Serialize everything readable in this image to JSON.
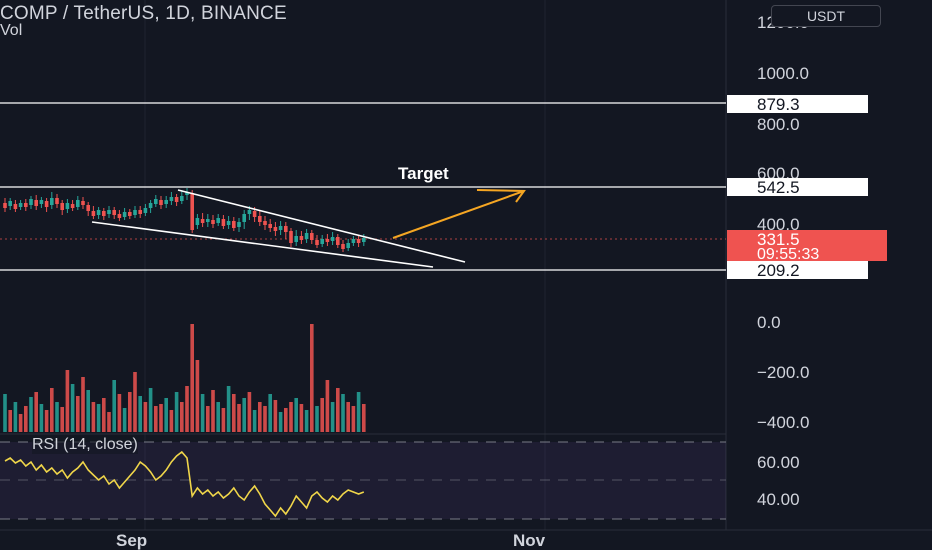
{
  "header": {
    "symbol_title": "COMP / TetherUS, 1D, BINANCE",
    "volume_label": "Vol"
  },
  "currency_button": {
    "label": "USDT"
  },
  "price_axis": {
    "ticks": [
      {
        "label": "1200.0",
        "value": 1200
      },
      {
        "label": "1000.0",
        "value": 1000
      },
      {
        "label": "800.0",
        "value": 800
      },
      {
        "label": "600.0",
        "value": 600
      },
      {
        "label": "400.0",
        "value": 400
      }
    ]
  },
  "volume_axis": {
    "ticks": [
      {
        "label": "0.0",
        "value": 0
      },
      {
        "label": "−200.0",
        "value": -200
      },
      {
        "label": "−400.0",
        "value": -400
      }
    ]
  },
  "rsi_axis": {
    "ticks": [
      {
        "label": "60.00",
        "value": 60
      },
      {
        "label": "40.00",
        "value": 40
      }
    ]
  },
  "levels": [
    {
      "label": "879.3",
      "value": 879.3
    },
    {
      "label": "542.5",
      "value": 542.5
    },
    {
      "label": "209.2",
      "value": 209.2
    }
  ],
  "current_price": {
    "price": "331.5",
    "countdown": "09:55:33",
    "value": 331.5
  },
  "annotation": {
    "target_label": "Target"
  },
  "rsi_indicator": {
    "label": "RSI (14, close)"
  },
  "time_axis": {
    "labels": [
      "Sep",
      "Nov"
    ]
  },
  "colors": {
    "background": "#131722",
    "up": "#26a69a",
    "down": "#ef5350",
    "rsi_line": "#f0d64a",
    "arrow": "#f5a623",
    "level_line": "#ffffff",
    "price_tag": "#ef5350"
  }
}
